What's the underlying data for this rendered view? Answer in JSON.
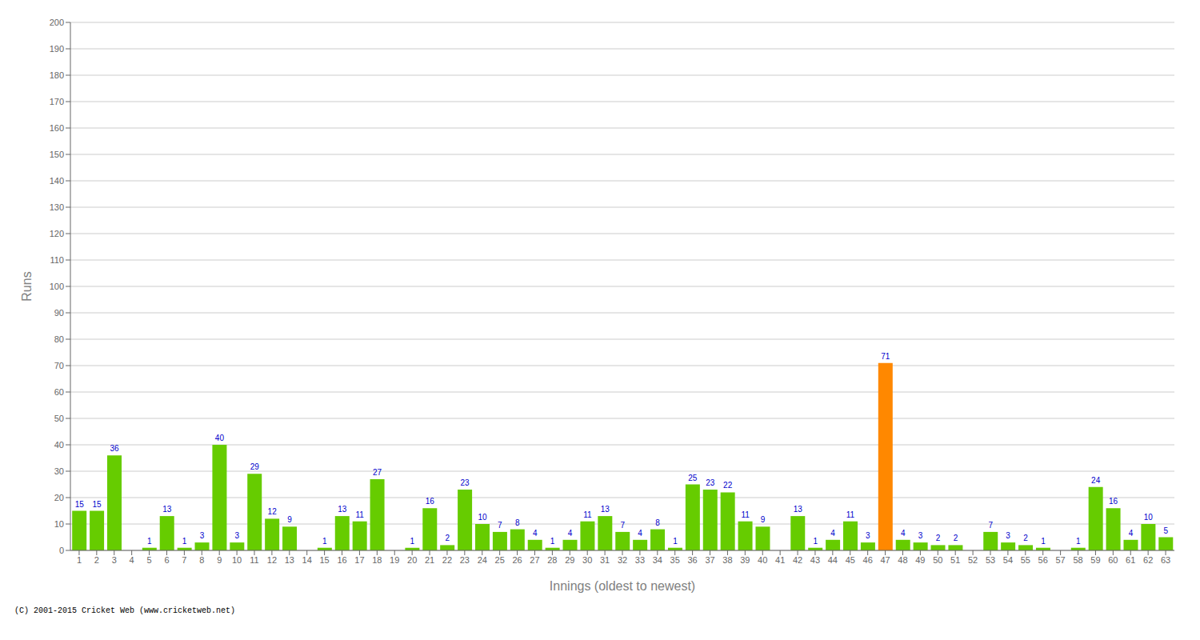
{
  "chart_data": {
    "type": "bar",
    "categories": [
      "1",
      "2",
      "3",
      "4",
      "5",
      "6",
      "7",
      "8",
      "9",
      "10",
      "11",
      "12",
      "13",
      "14",
      "15",
      "16",
      "17",
      "18",
      "19",
      "20",
      "21",
      "22",
      "23",
      "24",
      "25",
      "26",
      "27",
      "28",
      "29",
      "30",
      "31",
      "32",
      "33",
      "34",
      "35",
      "36",
      "37",
      "38",
      "39",
      "40",
      "41",
      "42",
      "43",
      "44",
      "45",
      "46",
      "47",
      "48",
      "49",
      "50",
      "51",
      "52",
      "53",
      "54",
      "55",
      "56",
      "57",
      "58",
      "59",
      "60",
      "61",
      "62",
      "63"
    ],
    "values": [
      15,
      15,
      36,
      0,
      1,
      13,
      1,
      3,
      40,
      3,
      29,
      12,
      9,
      0,
      1,
      13,
      11,
      27,
      0,
      1,
      16,
      2,
      23,
      10,
      7,
      8,
      4,
      1,
      4,
      11,
      13,
      7,
      4,
      8,
      1,
      25,
      23,
      22,
      11,
      9,
      0,
      13,
      1,
      4,
      11,
      3,
      71,
      4,
      3,
      2,
      2,
      0,
      7,
      3,
      2,
      1,
      0,
      1,
      24,
      16,
      4,
      10,
      5
    ],
    "colors": [
      "#66cc00",
      "#66cc00",
      "#66cc00",
      "#66cc00",
      "#66cc00",
      "#66cc00",
      "#66cc00",
      "#66cc00",
      "#66cc00",
      "#66cc00",
      "#66cc00",
      "#66cc00",
      "#66cc00",
      "#66cc00",
      "#66cc00",
      "#66cc00",
      "#66cc00",
      "#66cc00",
      "#66cc00",
      "#66cc00",
      "#66cc00",
      "#66cc00",
      "#66cc00",
      "#66cc00",
      "#66cc00",
      "#66cc00",
      "#66cc00",
      "#66cc00",
      "#66cc00",
      "#66cc00",
      "#66cc00",
      "#66cc00",
      "#66cc00",
      "#66cc00",
      "#66cc00",
      "#66cc00",
      "#66cc00",
      "#66cc00",
      "#66cc00",
      "#66cc00",
      "#66cc00",
      "#66cc00",
      "#66cc00",
      "#66cc00",
      "#66cc00",
      "#66cc00",
      "#ff8800",
      "#66cc00",
      "#66cc00",
      "#66cc00",
      "#66cc00",
      "#66cc00",
      "#66cc00",
      "#66cc00",
      "#66cc00",
      "#66cc00",
      "#66cc00",
      "#66cc00",
      "#66cc00",
      "#66cc00",
      "#66cc00",
      "#66cc00",
      "#66cc00"
    ],
    "xlabel": "Innings (oldest to newest)",
    "ylabel": "Runs",
    "ylim": [
      0,
      200
    ],
    "yticks": [
      0,
      10,
      20,
      30,
      40,
      50,
      60,
      70,
      80,
      90,
      100,
      110,
      120,
      130,
      140,
      150,
      160,
      170,
      180,
      190,
      200
    ],
    "grid": true,
    "data_labels": true,
    "annotations": [
      "(C) 2001-2015 Cricket Web (www.cricketweb.net)"
    ]
  }
}
